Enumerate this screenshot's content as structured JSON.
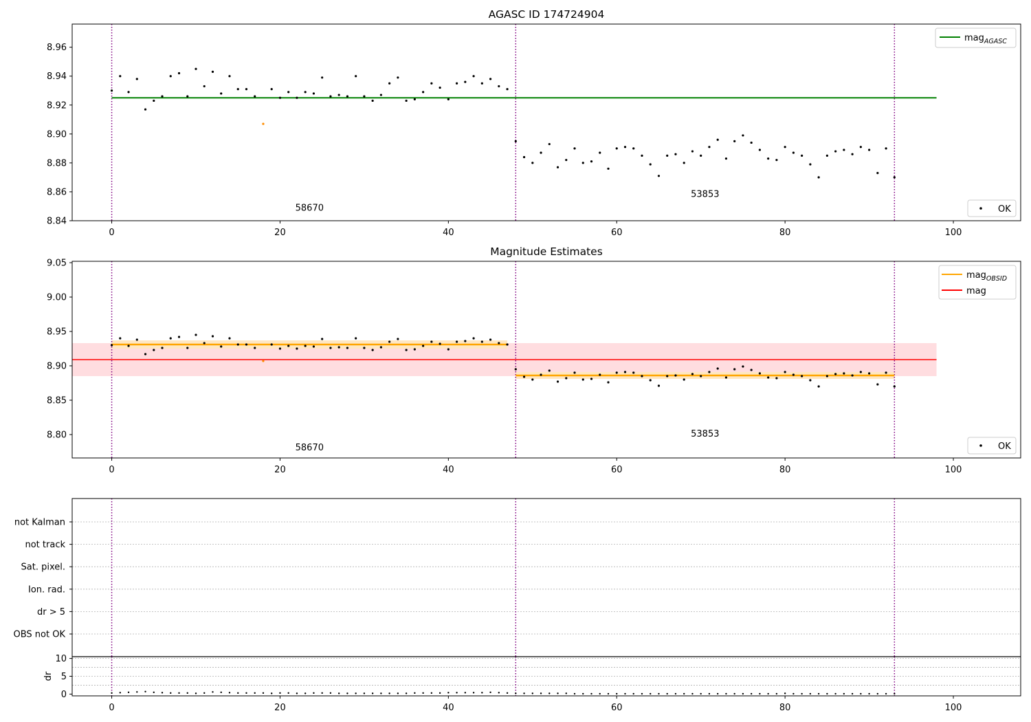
{
  "chart_data": [
    {
      "type": "scatter",
      "title": "AGASC ID 174724904",
      "xlim": [
        -4.7,
        108
      ],
      "ylim": [
        8.84,
        8.976
      ],
      "xticks": [
        0,
        20,
        40,
        60,
        80,
        100
      ],
      "yticks": [
        8.84,
        8.86,
        8.88,
        8.9,
        8.92,
        8.94,
        8.96
      ],
      "ytick_labels": [
        "8.84",
        "8.86",
        "8.88",
        "8.90",
        "8.92",
        "8.94",
        "8.96"
      ],
      "vlines": [
        0,
        48,
        93
      ],
      "obsids": [
        {
          "label": "58670",
          "x": 23.5,
          "y": 8.847
        },
        {
          "label": "53853",
          "x": 70.5,
          "y": 8.8565
        }
      ],
      "hline": {
        "name": "mag_AGASC",
        "legend_main": "mag",
        "legend_sub": "AGASC",
        "y": 8.925,
        "x": [
          0,
          98
        ],
        "color": "#008000"
      },
      "legend_points": {
        "label": "OK"
      },
      "legend_placement": "top-right; OK bottom-right",
      "point_series": "mags"
    },
    {
      "type": "scatter",
      "title": "Magnitude Estimates",
      "xlim": [
        -4.7,
        108
      ],
      "ylim": [
        8.766,
        9.052
      ],
      "xticks": [
        0,
        20,
        40,
        60,
        80,
        100
      ],
      "yticks": [
        8.8,
        8.85,
        8.9,
        8.95,
        9.0,
        9.05
      ],
      "ytick_labels": [
        "8.80",
        "8.85",
        "8.90",
        "8.95",
        "9.00",
        "9.05"
      ],
      "vlines": [
        0,
        48,
        93
      ],
      "obsids": [
        {
          "label": "58670",
          "x": 23.5,
          "y": 8.777
        },
        {
          "label": "53853",
          "x": 70.5,
          "y": 8.797
        }
      ],
      "mag": {
        "name": "mag",
        "y": 8.909,
        "band": [
          8.885,
          8.933
        ],
        "x": [
          -4.7,
          98
        ],
        "color": "#ff0000",
        "band_color": "#ffdde0"
      },
      "mag_obsid": [
        {
          "x": [
            0,
            47
          ],
          "y": 8.931,
          "band": [
            8.925,
            8.937
          ]
        },
        {
          "x": [
            48,
            93
          ],
          "y": 8.886,
          "band": [
            8.881,
            8.891
          ]
        }
      ],
      "legend": [
        {
          "main": "mag",
          "sub": "OBSID",
          "color": "#ffa500"
        },
        {
          "main": "mag",
          "sub": "",
          "color": "#ff0000"
        }
      ],
      "legend_points": {
        "label": "OK"
      },
      "legend_placement": "top-right; OK bottom-right",
      "point_series": "mags"
    },
    {
      "type": "scatter",
      "title": "",
      "xlim": [
        -4.7,
        108
      ],
      "flag_labels": [
        "not Kalman",
        "not track",
        "Sat. pixel.",
        "Ion. rad.",
        "dr > 5",
        "OBS not OK"
      ],
      "vlines": [
        0,
        48,
        93
      ]
    },
    {
      "type": "scatter",
      "title": "",
      "xlim": [
        -4.7,
        108
      ],
      "ylim": [
        -0.5,
        10.5
      ],
      "xticks": [
        0,
        20,
        40,
        60,
        80,
        100
      ],
      "yticks": [
        0,
        5,
        10
      ],
      "ytick_labels": [
        "0",
        "5",
        "10"
      ],
      "ylabel": "dr",
      "vlines": [
        0,
        48,
        93
      ],
      "point_series": "dr"
    }
  ],
  "series": {
    "x": [
      0,
      1,
      2,
      3,
      4,
      5,
      6,
      7,
      8,
      9,
      10,
      11,
      12,
      13,
      14,
      15,
      16,
      17,
      18,
      19,
      20,
      21,
      22,
      23,
      24,
      25,
      26,
      27,
      28,
      29,
      30,
      31,
      32,
      33,
      34,
      35,
      36,
      37,
      38,
      39,
      40,
      41,
      42,
      43,
      44,
      45,
      46,
      47,
      48,
      49,
      50,
      51,
      52,
      53,
      54,
      55,
      56,
      57,
      58,
      59,
      60,
      61,
      62,
      63,
      64,
      65,
      66,
      67,
      68,
      69,
      70,
      71,
      72,
      73,
      74,
      75,
      76,
      77,
      78,
      79,
      80,
      81,
      82,
      83,
      84,
      85,
      86,
      87,
      88,
      89,
      90,
      91,
      92,
      93
    ],
    "mags": [
      8.93,
      8.94,
      8.929,
      8.938,
      8.917,
      8.923,
      8.926,
      8.94,
      8.942,
      8.926,
      8.945,
      8.933,
      8.943,
      8.928,
      8.94,
      8.931,
      8.931,
      8.926,
      8.907,
      8.931,
      8.925,
      8.929,
      8.925,
      8.929,
      8.928,
      8.939,
      8.926,
      8.927,
      8.926,
      8.94,
      8.926,
      8.923,
      8.927,
      8.935,
      8.939,
      8.923,
      8.924,
      8.929,
      8.935,
      8.932,
      8.924,
      8.935,
      8.936,
      8.94,
      8.935,
      8.938,
      8.933,
      8.931,
      8.895,
      8.884,
      8.88,
      8.887,
      8.893,
      8.877,
      8.882,
      8.89,
      8.88,
      8.881,
      8.887,
      8.876,
      8.89,
      8.891,
      8.89,
      8.885,
      8.879,
      8.871,
      8.885,
      8.886,
      8.88,
      8.888,
      8.885,
      8.891,
      8.896,
      8.883,
      8.895,
      8.899,
      8.894,
      8.889,
      8.883,
      8.882,
      8.891,
      8.887,
      8.885,
      8.879,
      8.87,
      8.885,
      8.888,
      8.889,
      8.886,
      8.891,
      8.889,
      8.873,
      8.89,
      8.87
    ],
    "status": [
      0,
      0,
      0,
      0,
      0,
      0,
      0,
      0,
      0,
      0,
      0,
      0,
      0,
      0,
      0,
      0,
      0,
      0,
      1,
      0,
      0,
      0,
      0,
      0,
      0,
      0,
      0,
      0,
      0,
      0,
      0,
      0,
      0,
      0,
      0,
      0,
      0,
      0,
      0,
      0,
      0,
      0,
      0,
      0,
      0,
      0,
      0,
      0,
      0,
      0,
      0,
      0,
      0,
      0,
      0,
      0,
      0,
      0,
      0,
      0,
      0,
      0,
      0,
      0,
      0,
      0,
      0,
      0,
      0,
      0,
      0,
      0,
      0,
      0,
      0,
      0,
      0,
      0,
      0,
      0,
      0,
      0,
      0,
      0,
      0,
      0,
      0,
      0,
      0,
      0,
      0,
      0,
      0,
      0
    ],
    "dr": [
      0.3,
      0.4,
      0.5,
      0.6,
      0.7,
      0.5,
      0.4,
      0.3,
      0.3,
      0.3,
      0.2,
      0.3,
      0.6,
      0.5,
      0.4,
      0.3,
      0.3,
      0.3,
      0.3,
      0.2,
      0.3,
      0.3,
      0.2,
      0.2,
      0.3,
      0.3,
      0.3,
      0.2,
      0.2,
      0.2,
      0.2,
      0.2,
      0.2,
      0.2,
      0.2,
      0.2,
      0.3,
      0.3,
      0.3,
      0.3,
      0.4,
      0.4,
      0.4,
      0.4,
      0.4,
      0.5,
      0.4,
      0.3,
      0.2,
      0.2,
      0.2,
      0.2,
      0.2,
      0.2,
      0.2,
      0.1,
      0.1,
      0.1,
      0.1,
      0.1,
      0.1,
      0.1,
      0.1,
      0.1,
      0.1,
      0.1,
      0.1,
      0.1,
      0.1,
      0.1,
      0.1,
      0.1,
      0.1,
      0.1,
      0.1,
      0.1,
      0.1,
      0.1,
      0.1,
      0.1,
      0.2,
      0.1,
      0.1,
      0.1,
      0.1,
      0.1,
      0.1,
      0.1,
      0.1,
      0.1,
      0.1,
      0.1,
      0.1,
      0.1
    ]
  },
  "colors": {
    "ok_point": "#000000",
    "flagged_point": "#ff8c00",
    "vline": "#800080",
    "grid": "#b0b0b0"
  }
}
